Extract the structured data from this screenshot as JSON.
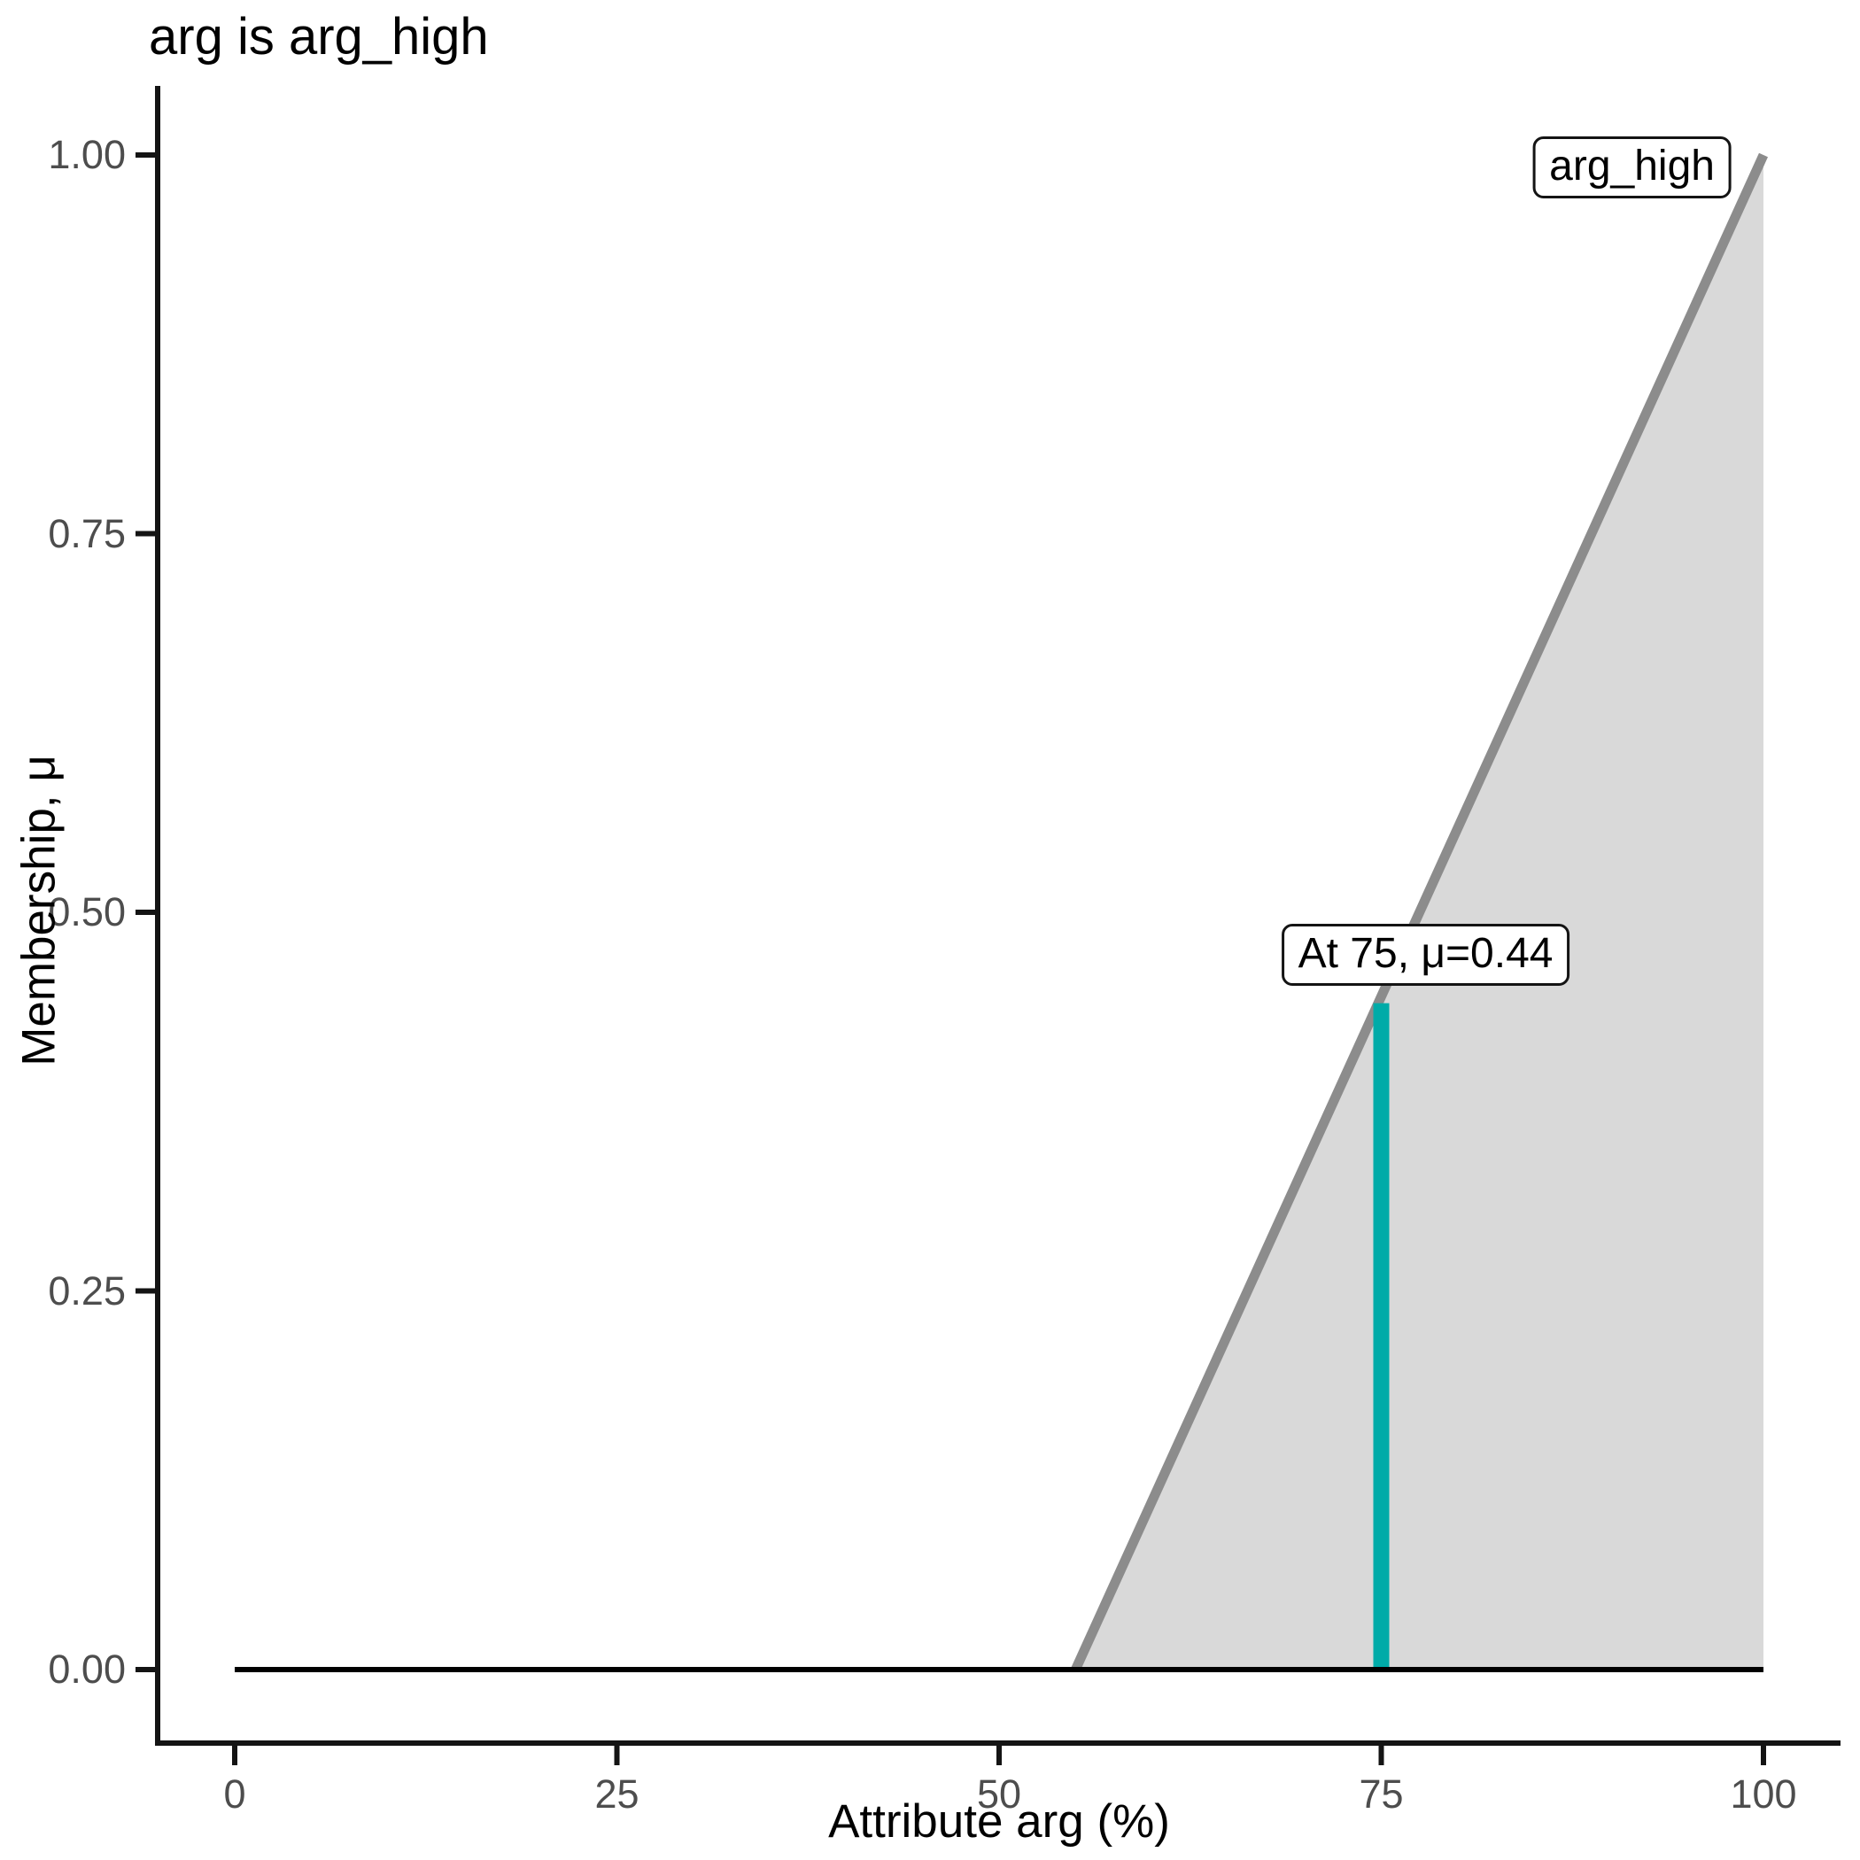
{
  "title": "arg is arg_high",
  "colors": {
    "background": "#ffffff",
    "axis": "#141414",
    "tick_text": "#4d4d4d",
    "title_text": "#000000",
    "membership_line": "#8c8c8c",
    "membership_fill": "#d9d9d9",
    "evaluation_line": "#00aba8",
    "baseline": "#000000"
  },
  "chart_data": {
    "type": "area",
    "title": "arg is arg_high",
    "xlabel": "Attribute arg (%)",
    "ylabel": "Membership, μ",
    "xlim": [
      0,
      100
    ],
    "ylim": [
      0,
      1
    ],
    "x_ticks": [
      "0",
      "25",
      "50",
      "75",
      "100"
    ],
    "y_ticks": [
      "0.00",
      "0.25",
      "0.50",
      "0.75",
      "1.00"
    ],
    "grid": false,
    "legend": "none",
    "series": [
      {
        "name": "arg_high",
        "description": "linear membership function rising from 0 at arg=55 to 1 at arg=100",
        "x": [
          55,
          100
        ],
        "y": [
          0,
          1
        ],
        "color": "#8c8c8c",
        "fill": "#d9d9d9",
        "lw": 11
      },
      {
        "name": "evaluation_at_75",
        "description": "vertical evaluation segment at arg=75 up to membership 0.44",
        "x": [
          75,
          75
        ],
        "y": [
          0,
          0.44
        ],
        "color": "#00aba8",
        "lw": 18
      },
      {
        "name": "zero_baseline",
        "description": "membership = 0 baseline across full range",
        "x": [
          0,
          100
        ],
        "y": [
          0,
          0
        ],
        "color": "#000000",
        "lw": 6
      }
    ],
    "annotations": [
      {
        "text": "arg_high",
        "x": 91.4,
        "y": 0.992
      },
      {
        "text": "At 75, μ=0.44",
        "x": 77.9,
        "y": 0.472
      }
    ]
  }
}
